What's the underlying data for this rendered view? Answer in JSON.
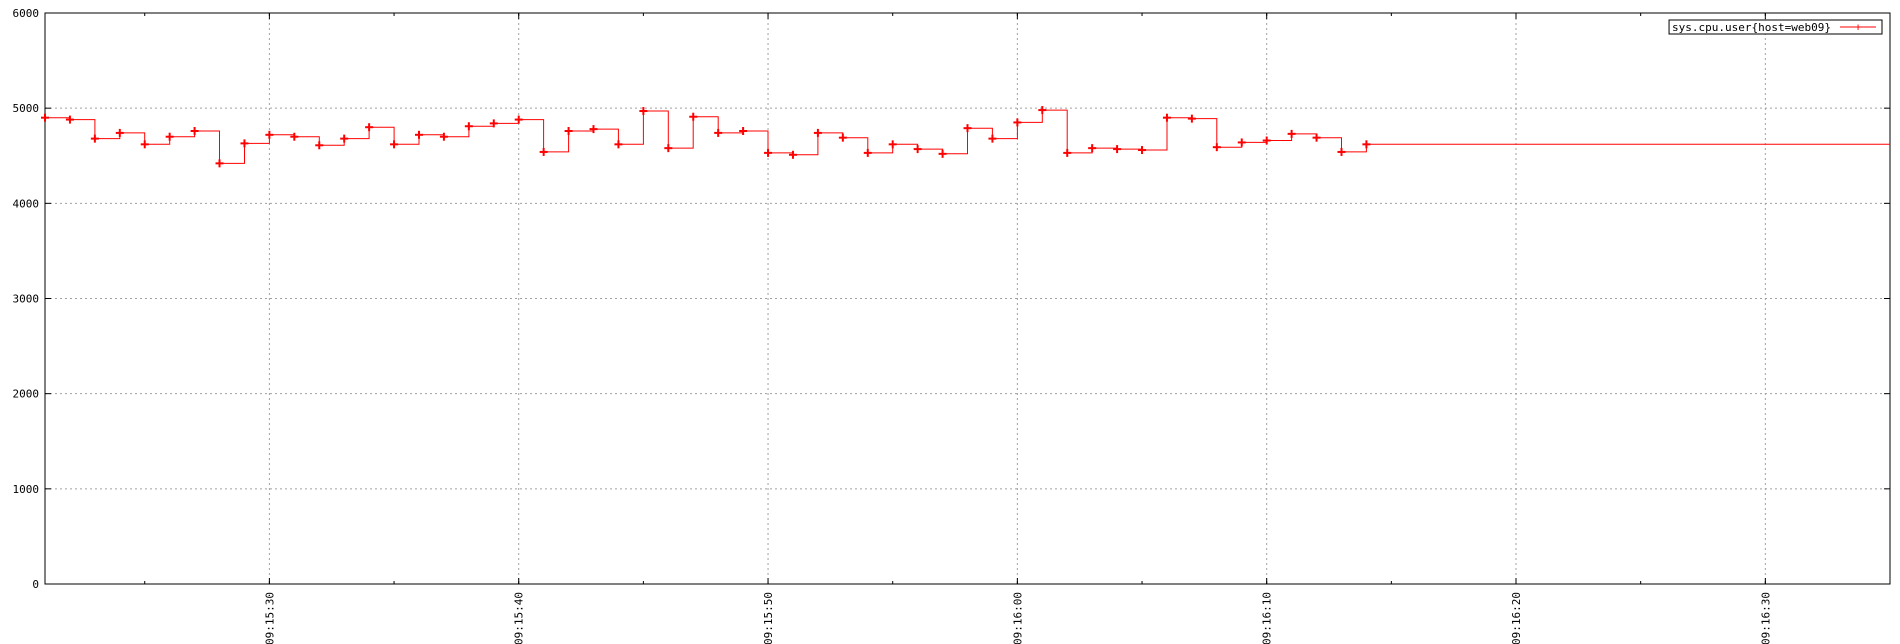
{
  "chart_data": {
    "type": "line",
    "title": "",
    "xlabel": "",
    "ylabel": "",
    "ylim": [
      0,
      6000
    ],
    "yticks": [
      0,
      1000,
      2000,
      3000,
      4000,
      5000,
      6000
    ],
    "xlim": [
      "09:15:21",
      "09:16:35"
    ],
    "xticks": [
      "09:15:30",
      "09:15:40",
      "09:15:50",
      "09:16:00",
      "09:16:10",
      "09:16:20",
      "09:16:30"
    ],
    "grid": true,
    "legend": {
      "position": "top-right",
      "entries": [
        {
          "label": "sys.cpu.user{host=web09}",
          "color": "#ff0000"
        }
      ]
    },
    "series": [
      {
        "name": "sys.cpu.user{host=web09}",
        "color": "#ff0000",
        "points": [
          {
            "t": "09:15:21",
            "y": 4900
          },
          {
            "t": "09:15:22",
            "y": 4880
          },
          {
            "t": "09:15:23",
            "y": 4680
          },
          {
            "t": "09:15:24",
            "y": 4740
          },
          {
            "t": "09:15:25",
            "y": 4620
          },
          {
            "t": "09:15:26",
            "y": 4700
          },
          {
            "t": "09:15:27",
            "y": 4760
          },
          {
            "t": "09:15:28",
            "y": 4420
          },
          {
            "t": "09:15:29",
            "y": 4630
          },
          {
            "t": "09:15:30",
            "y": 4720
          },
          {
            "t": "09:15:31",
            "y": 4700
          },
          {
            "t": "09:15:32",
            "y": 4610
          },
          {
            "t": "09:15:33",
            "y": 4680
          },
          {
            "t": "09:15:34",
            "y": 4800
          },
          {
            "t": "09:15:35",
            "y": 4620
          },
          {
            "t": "09:15:36",
            "y": 4720
          },
          {
            "t": "09:15:37",
            "y": 4700
          },
          {
            "t": "09:15:38",
            "y": 4810
          },
          {
            "t": "09:15:39",
            "y": 4840
          },
          {
            "t": "09:15:40",
            "y": 4880
          },
          {
            "t": "09:15:41",
            "y": 4540
          },
          {
            "t": "09:15:42",
            "y": 4760
          },
          {
            "t": "09:15:43",
            "y": 4780
          },
          {
            "t": "09:15:44",
            "y": 4620
          },
          {
            "t": "09:15:45",
            "y": 4970
          },
          {
            "t": "09:15:46",
            "y": 4580
          },
          {
            "t": "09:15:47",
            "y": 4910
          },
          {
            "t": "09:15:48",
            "y": 4740
          },
          {
            "t": "09:15:49",
            "y": 4760
          },
          {
            "t": "09:15:50",
            "y": 4530
          },
          {
            "t": "09:15:51",
            "y": 4510
          },
          {
            "t": "09:15:52",
            "y": 4740
          },
          {
            "t": "09:15:53",
            "y": 4690
          },
          {
            "t": "09:15:54",
            "y": 4530
          },
          {
            "t": "09:15:55",
            "y": 4620
          },
          {
            "t": "09:15:56",
            "y": 4570
          },
          {
            "t": "09:15:57",
            "y": 4520
          },
          {
            "t": "09:15:58",
            "y": 4790
          },
          {
            "t": "09:15:59",
            "y": 4680
          },
          {
            "t": "09:16:00",
            "y": 4850
          },
          {
            "t": "09:16:01",
            "y": 4980
          },
          {
            "t": "09:16:02",
            "y": 4530
          },
          {
            "t": "09:16:03",
            "y": 4580
          },
          {
            "t": "09:16:04",
            "y": 4570
          },
          {
            "t": "09:16:05",
            "y": 4560
          },
          {
            "t": "09:16:06",
            "y": 4900
          },
          {
            "t": "09:16:07",
            "y": 4890
          },
          {
            "t": "09:16:08",
            "y": 4590
          },
          {
            "t": "09:16:09",
            "y": 4640
          },
          {
            "t": "09:16:10",
            "y": 4660
          },
          {
            "t": "09:16:11",
            "y": 4730
          },
          {
            "t": "09:16:12",
            "y": 4690
          },
          {
            "t": "09:16:13",
            "y": 4540
          },
          {
            "t": "09:16:14",
            "y": 4620
          },
          {
            "t": "09:16:35",
            "y": 4620
          }
        ]
      }
    ]
  }
}
